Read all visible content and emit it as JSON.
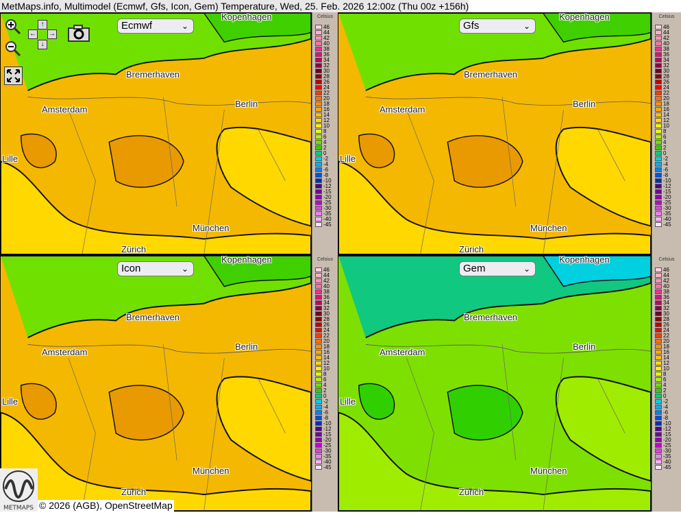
{
  "title": "MetMaps.info, Multimodel (Ecmwf, Gfs, Icon, Gem) Temperature, Wed, 25. Feb. 2026 12:00z (Thu 00z +156h)",
  "controls": {
    "zoom_in": "zoom-in-icon",
    "zoom_out": "zoom-out-icon",
    "pan": [
      "↑",
      "←",
      "→",
      "↓"
    ],
    "screenshot": "camera-icon",
    "fullscreen": "fullscreen-icon"
  },
  "panels": [
    {
      "model": "Ecmwf",
      "theme": "warm"
    },
    {
      "model": "Gfs",
      "theme": "warm"
    },
    {
      "model": "Icon",
      "theme": "warm"
    },
    {
      "model": "Gem",
      "theme": "cool"
    }
  ],
  "cities": [
    "Kopenhagen",
    "Bremerhaven",
    "Amsterdam",
    "Berlin",
    "Lille",
    "München",
    "Zürich"
  ],
  "legend": {
    "unit": "Celsius",
    "levels": [
      "46",
      "44",
      "42",
      "40",
      "38",
      "36",
      "34",
      "32",
      "30",
      "28",
      "26",
      "24",
      "22",
      "20",
      "18",
      "16",
      "14",
      "12",
      "10",
      "8",
      "6",
      "4",
      "2",
      "0",
      "-2",
      "-4",
      "-6",
      "-8",
      "-10",
      "-12",
      "-15",
      "-20",
      "-25",
      "-30",
      "-35",
      "-40",
      "-45"
    ],
    "colors": [
      "#ffd0e0",
      "#ffb0c8",
      "#ff90b8",
      "#ff70a8",
      "#f03090",
      "#e01078",
      "#c00060",
      "#900040",
      "#700020",
      "#900000",
      "#c00000",
      "#e01000",
      "#f04000",
      "#ff7000",
      "#ff9000",
      "#ffa800",
      "#ffc000",
      "#ffd800",
      "#fff000",
      "#e0ff00",
      "#b0f000",
      "#70e000",
      "#30d000",
      "#00d080",
      "#00d0e0",
      "#00b0ff",
      "#0080ff",
      "#0050e0",
      "#0030b0",
      "#500090",
      "#7000a0",
      "#9000b0",
      "#c000d0",
      "#e040e0",
      "#f080f0",
      "#ffb0ff",
      "#ffe0ff"
    ]
  },
  "copyright": "© 2026 (AGB), OpenStreetMap",
  "logo_text": "METMAPS"
}
